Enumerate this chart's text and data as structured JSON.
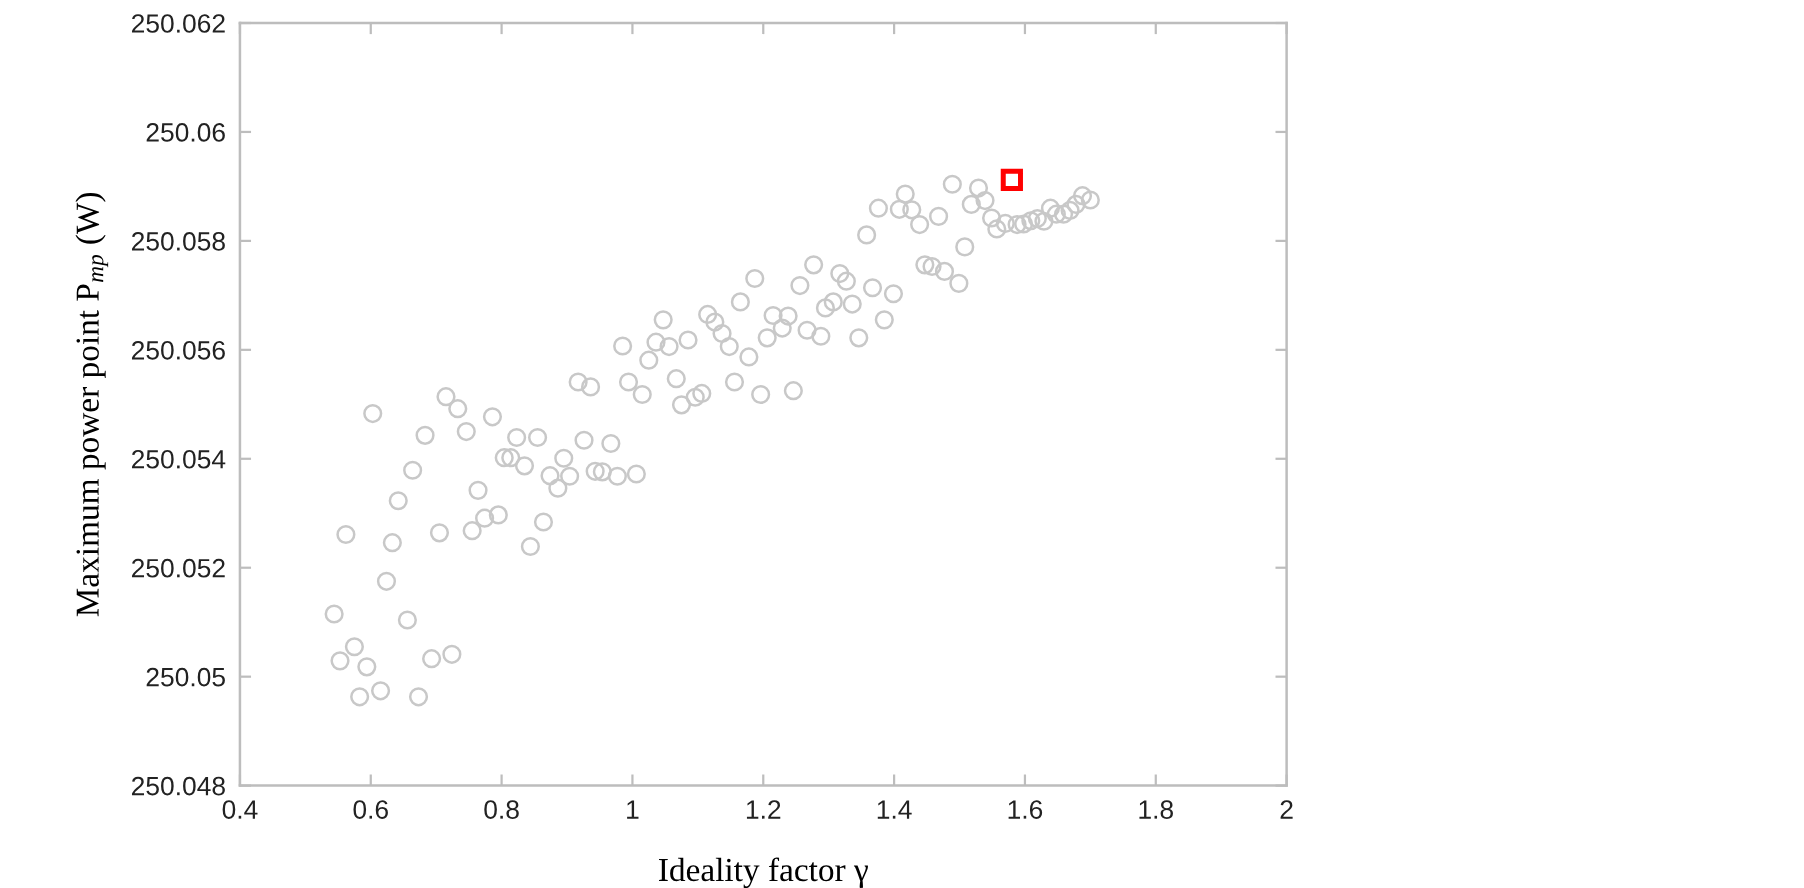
{
  "chart_data": {
    "type": "scatter",
    "xlabel": "Ideality factor γ",
    "ylabel": "Maximum power point P$_{mp}$ (W)",
    "xlim": [
      0.4,
      2
    ],
    "ylim": [
      250.048,
      250.062
    ],
    "xticks": [
      0.4,
      0.6,
      0.8,
      1,
      1.2,
      1.4,
      1.6,
      1.8,
      2
    ],
    "yticks": [
      250.048,
      250.05,
      250.052,
      250.054,
      250.056,
      250.058,
      250.06,
      250.062
    ],
    "series": [
      {
        "color": "#c8c8c8",
        "marker": "circle",
        "x": [
          0.603,
          0.715,
          0.733,
          0.786,
          0.683,
          0.746,
          0.823,
          0.855,
          0.804,
          0.814,
          0.835,
          0.895,
          0.926,
          0.917,
          0.936,
          0.874,
          0.904,
          0.886,
          0.943,
          0.664,
          0.764,
          0.642,
          0.795,
          0.774,
          0.755,
          0.705,
          0.864,
          0.844,
          0.562,
          0.633,
          0.624,
          0.544,
          0.656,
          0.575,
          0.553,
          0.594,
          0.693,
          0.724,
          0.583,
          0.615,
          0.673,
          1.277,
          1.187,
          1.256,
          1.317,
          1.327,
          1.367,
          1.399,
          1.165,
          1.307,
          1.295,
          1.336,
          1.385,
          1.346,
          1.047,
          1.115,
          1.126,
          1.215,
          1.238,
          1.229,
          1.267,
          1.288,
          1.137,
          1.148,
          1.206,
          1.178,
          0.985,
          1.036,
          1.056,
          1.085,
          1.025,
          0.994,
          1.015,
          1.067,
          1.075,
          1.096,
          1.106,
          1.156,
          1.196,
          1.246,
          0.967,
          0.954,
          0.977,
          1.006,
          1.489,
          1.417,
          1.529,
          1.376,
          1.408,
          1.427,
          1.518,
          1.539,
          1.439,
          1.468,
          1.549,
          1.557,
          1.57,
          1.588,
          1.598,
          1.609,
          1.619,
          1.629,
          1.639,
          1.648,
          1.659,
          1.669,
          1.678,
          1.688,
          1.7,
          1.358,
          1.508,
          1.447,
          1.458,
          1.477,
          1.499
        ],
        "values": [
          250.05483,
          250.05514,
          250.05492,
          250.05477,
          250.05443,
          250.0545,
          250.05439,
          250.05439,
          250.05402,
          250.05402,
          250.05387,
          250.05401,
          250.05434,
          250.05541,
          250.05532,
          250.05369,
          250.05368,
          250.05346,
          250.05377,
          250.05379,
          250.05342,
          250.05323,
          250.05297,
          250.05291,
          250.05268,
          250.05264,
          250.05284,
          250.05239,
          250.05261,
          250.05246,
          250.05175,
          250.05115,
          250.05104,
          250.05055,
          250.05029,
          250.05018,
          250.05033,
          250.05041,
          250.04963,
          250.04974,
          250.04963,
          250.05756,
          250.05731,
          250.05718,
          250.0574,
          250.05726,
          250.05714,
          250.05703,
          250.05688,
          250.05688,
          250.05677,
          250.05684,
          250.05655,
          250.05622,
          250.05655,
          250.05665,
          250.05651,
          250.05663,
          250.05662,
          250.0564,
          250.05636,
          250.05625,
          250.0563,
          250.05606,
          250.05622,
          250.05587,
          250.05607,
          250.05614,
          250.05606,
          250.05618,
          250.05581,
          250.05541,
          250.05518,
          250.05547,
          250.05499,
          250.05513,
          250.0552,
          250.05541,
          250.05518,
          250.05525,
          250.05428,
          250.05376,
          250.05368,
          250.05372,
          250.05904,
          250.05886,
          250.05897,
          250.0586,
          250.05858,
          250.05857,
          250.05867,
          250.05874,
          250.0583,
          250.05845,
          250.05842,
          250.05822,
          250.05832,
          250.0583,
          250.05831,
          250.05837,
          250.05841,
          250.05836,
          250.0586,
          250.05849,
          250.05849,
          250.05856,
          250.05867,
          250.05883,
          250.05875,
          250.05811,
          250.05789,
          250.05756,
          250.05753,
          250.05744,
          250.05722
        ]
      },
      {
        "color": "#ff0000",
        "marker": "square",
        "x": [
          1.58
        ],
        "values": [
          250.05912
        ]
      }
    ]
  }
}
